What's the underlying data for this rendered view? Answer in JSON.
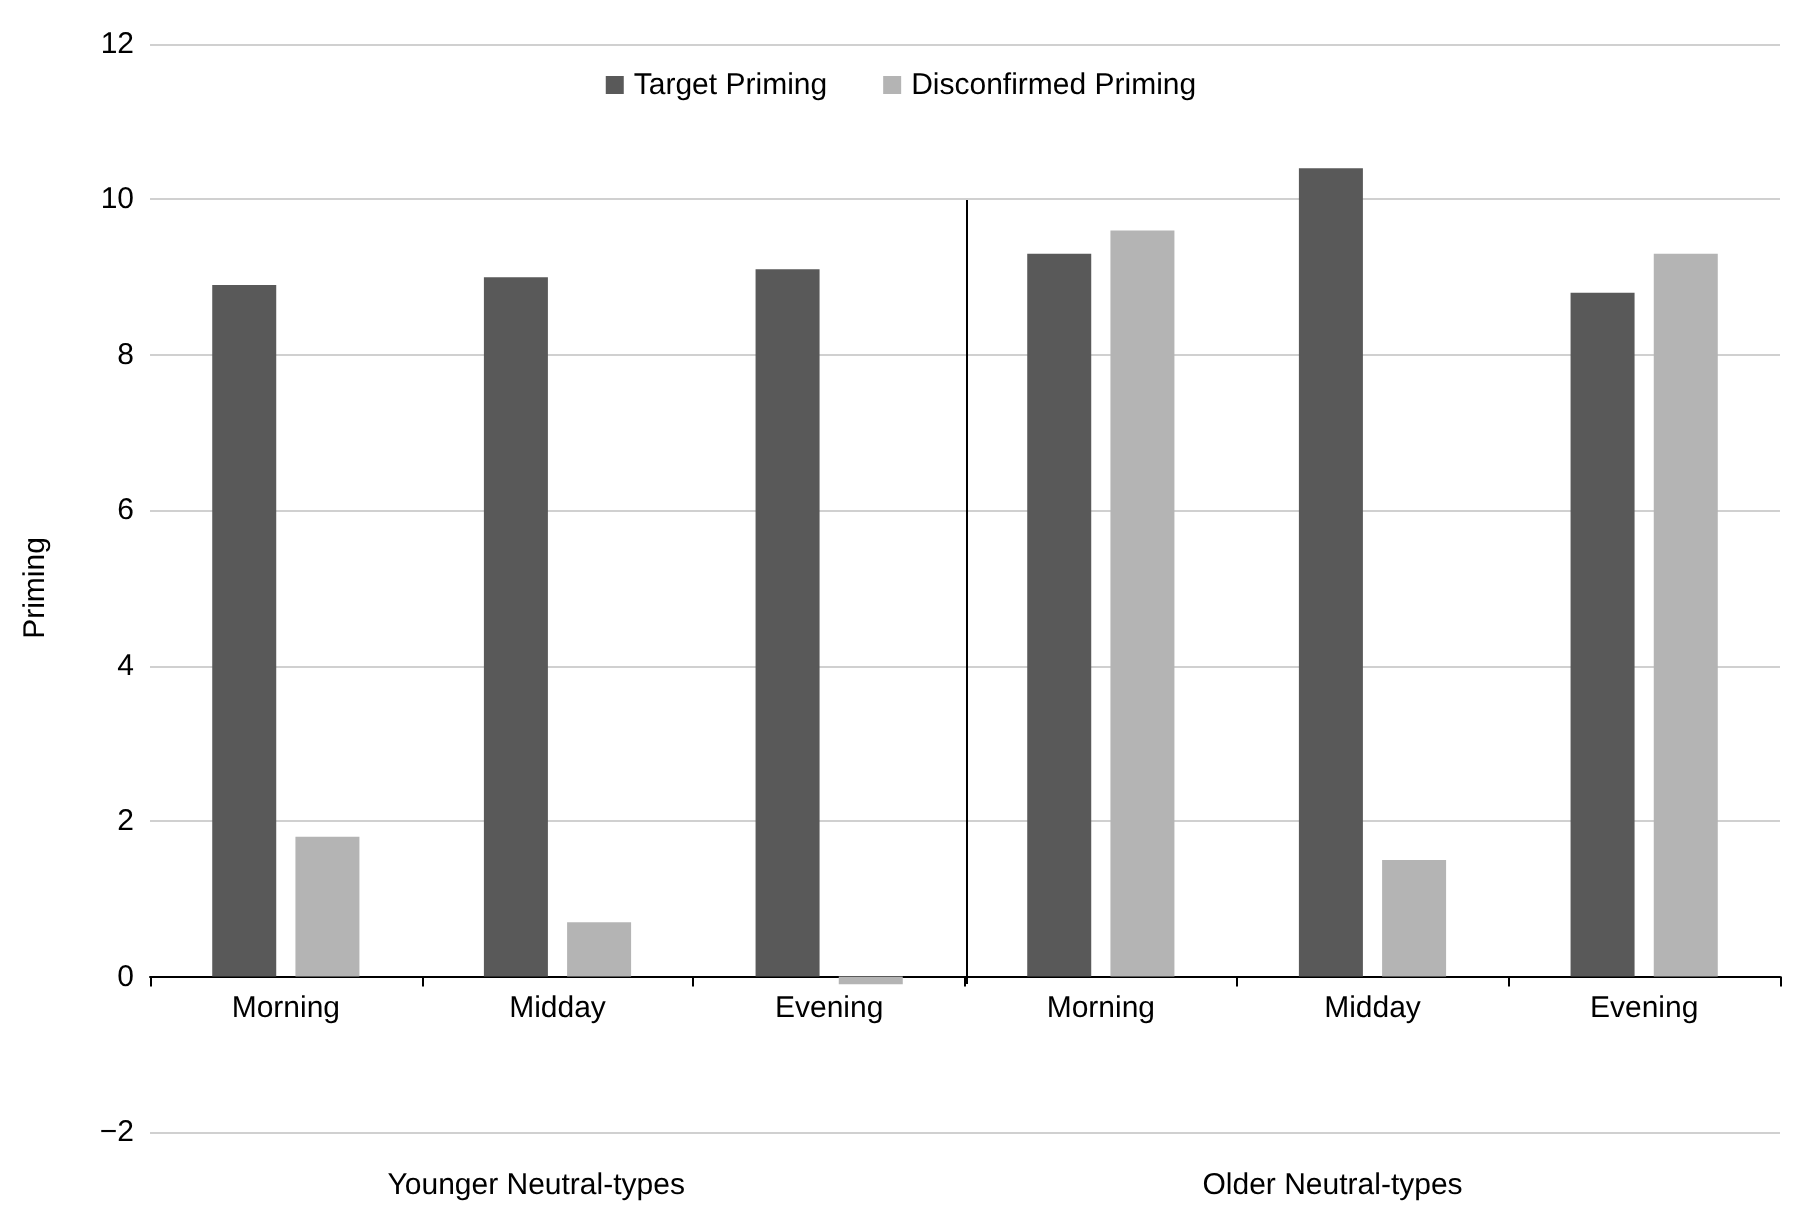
{
  "chart_data": {
    "type": "bar",
    "ylabel": "Priming",
    "categories": [
      "Morning",
      "Midday",
      "Evening",
      "Morning",
      "Midday",
      "Evening"
    ],
    "series": [
      {
        "name": "Target Priming",
        "color": "#595959",
        "values": [
          8.9,
          9.0,
          9.1,
          9.3,
          10.4,
          8.8
        ]
      },
      {
        "name": "Disconfirmed Priming",
        "color": "#b4b4b4",
        "values": [
          1.8,
          0.7,
          -0.1,
          9.6,
          1.5,
          9.3
        ]
      }
    ],
    "ylim": [
      -2,
      12
    ],
    "yticks": [
      {
        "value": -2,
        "label": "−2"
      },
      0,
      2,
      4,
      6,
      8,
      10,
      12
    ],
    "grid": "y",
    "legend": "top",
    "annotations": [
      "Younger Neutral-types",
      "Older Neutral-types"
    ]
  }
}
